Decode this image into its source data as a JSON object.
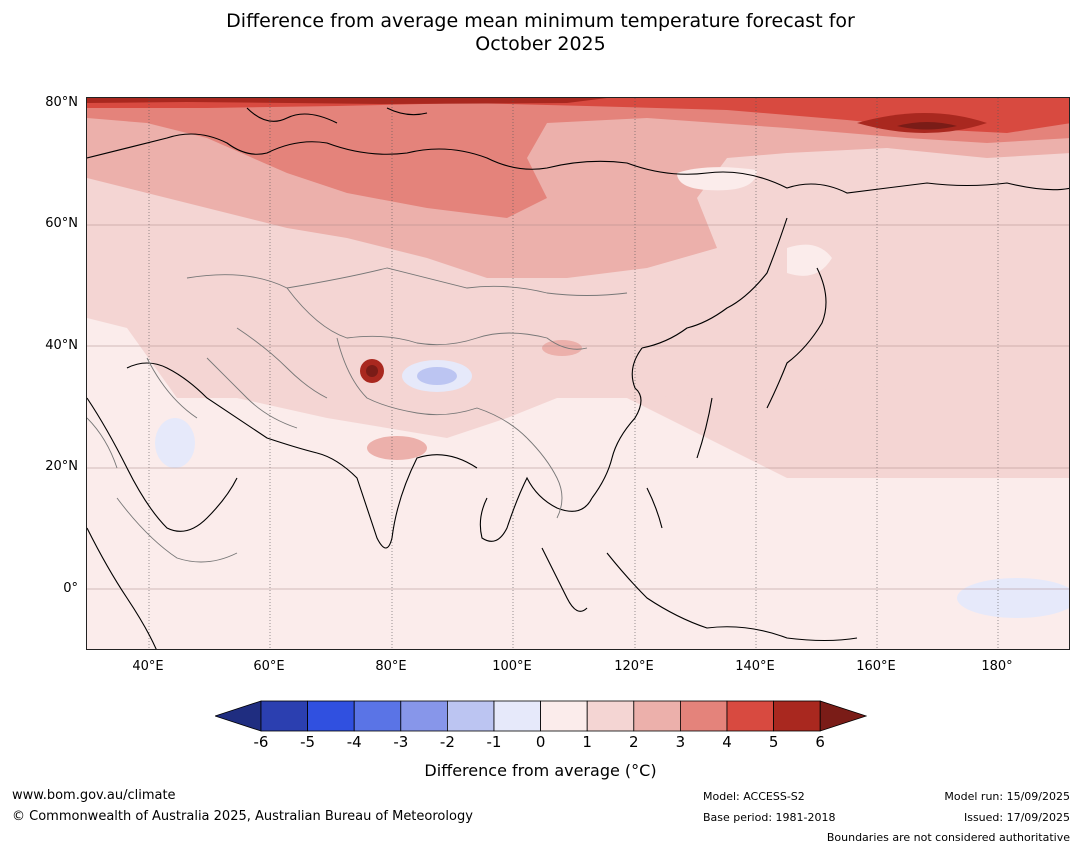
{
  "title": {
    "line1": "Difference from average mean minimum temperature forecast for",
    "line2": "October 2025"
  },
  "map": {
    "region": "Asia",
    "lat_labels": [
      "80°N",
      "60°N",
      "40°N",
      "20°N",
      "0°"
    ],
    "lon_labels": [
      "40°E",
      "60°E",
      "80°E",
      "100°E",
      "120°E",
      "140°E",
      "160°E",
      "180°"
    ]
  },
  "colorbar": {
    "ticks": [
      "-6",
      "-5",
      "-4",
      "-3",
      "-2",
      "-1",
      "0",
      "1",
      "2",
      "3",
      "4",
      "5",
      "6"
    ],
    "colors": [
      "#2b3fb0",
      "#3050e0",
      "#5a74e6",
      "#8796ea",
      "#bcc5f2",
      "#e6e9fa",
      "#fbeceb",
      "#f4d5d3",
      "#ecb0ab",
      "#e4837b",
      "#d84a40",
      "#a9281f"
    ],
    "low_extend_color": "#1f2d80",
    "high_extend_color": "#7a1c17",
    "label": "Difference from average (°C)"
  },
  "footer": {
    "website": "www.bom.gov.au/climate",
    "copyright": "© Commonwealth of Australia 2025, Australian Bureau of Meteorology",
    "model": "Model: ACCESS-S2",
    "base_period": "Base period: 1981-2018",
    "model_run": "Model run: 15/09/2025",
    "issued": "Issued: 17/09/2025",
    "disclaimer": "Boundaries are not considered authoritative"
  }
}
